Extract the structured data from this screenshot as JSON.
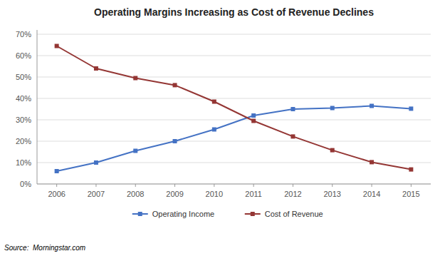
{
  "chart_data": {
    "type": "line",
    "title": "Operating Margins Increasing as Cost of Revenue Declines",
    "x": [
      2006,
      2007,
      2008,
      2009,
      2010,
      2011,
      2012,
      2013,
      2014,
      2015
    ],
    "series": [
      {
        "name": "Operating Income",
        "color": "#4472C4",
        "marker": "square",
        "line_style": "solid",
        "values": [
          0.06,
          0.1,
          0.155,
          0.2,
          0.255,
          0.32,
          0.35,
          0.355,
          0.365,
          0.352
        ]
      },
      {
        "name": "Cost of Revenue",
        "color": "#943634",
        "marker": "square",
        "line_style": "solid",
        "values": [
          0.645,
          0.54,
          0.495,
          0.462,
          0.385,
          0.295,
          0.222,
          0.158,
          0.102,
          0.068
        ]
      }
    ],
    "xlim": [
      2005.5,
      2015.5
    ],
    "xticks": [
      2006,
      2007,
      2008,
      2009,
      2010,
      2011,
      2012,
      2013,
      2014,
      2015
    ],
    "ylim": [
      0,
      0.72
    ],
    "yticks": [
      {
        "value": 0.0,
        "label": "0%"
      },
      {
        "value": 0.1,
        "label": "10%"
      },
      {
        "value": 0.2,
        "label": "20%"
      },
      {
        "value": 0.3,
        "label": "30%"
      },
      {
        "value": 0.4,
        "label": "40%"
      },
      {
        "value": 0.5,
        "label": "50%"
      },
      {
        "value": 0.6,
        "label": "60%"
      },
      {
        "value": 0.7,
        "label": "70%"
      }
    ],
    "grid": true,
    "legend": "bottom",
    "annotations": [
      "Source:  Morningstar.com"
    ]
  }
}
